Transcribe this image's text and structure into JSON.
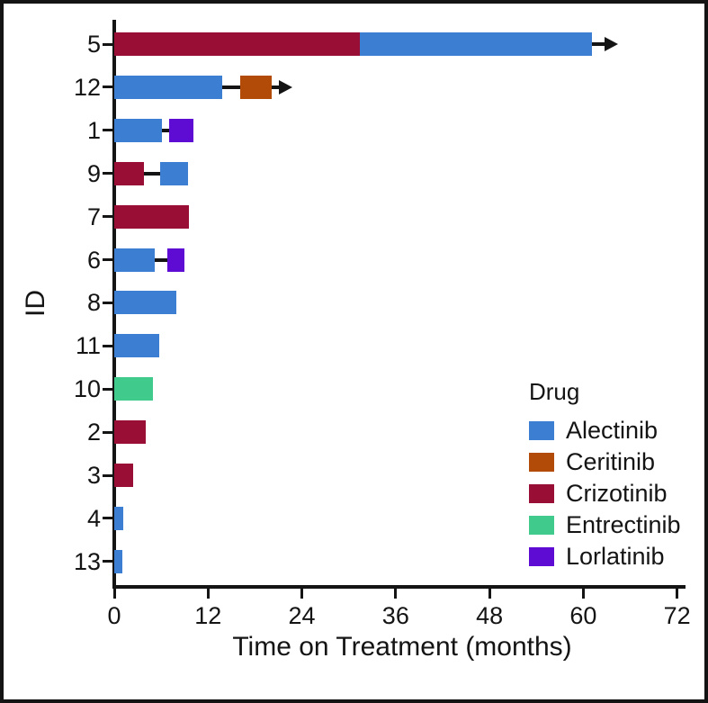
{
  "chart_data": {
    "type": "bar",
    "variant": "swimmer-plot",
    "orientation": "horizontal",
    "title": "",
    "xlabel": "Time on Treatment (months)",
    "ylabel": "ID",
    "xlim": [
      0,
      72
    ],
    "xticks": [
      0,
      12,
      24,
      36,
      48,
      60,
      72
    ],
    "grid": false,
    "background": "#ffffff",
    "axis_color": "#141414",
    "legend": {
      "title": "Drug",
      "position": "inside-right",
      "entries": [
        {
          "label": "Alectinib",
          "color": "#3b7ed2"
        },
        {
          "label": "Ceritinib",
          "color": "#b24a08"
        },
        {
          "label": "Crizotinib",
          "color": "#990e34"
        },
        {
          "label": "Entrectinib",
          "color": "#40cb8c"
        },
        {
          "label": "Lorlatinib",
          "color": "#5e0cd4"
        }
      ]
    },
    "rows": [
      {
        "id": "5",
        "segments": [
          {
            "drug": "Crizotinib",
            "start": 0,
            "end": 31.4
          },
          {
            "drug": "Alectinib",
            "start": 31.4,
            "end": 61.1
          }
        ],
        "ongoing": true,
        "arrow_tip": 64.4
      },
      {
        "id": "12",
        "segments": [
          {
            "drug": "Alectinib",
            "start": 0,
            "end": 13.8
          },
          {
            "drug": "Ceritinib",
            "start": 16.1,
            "end": 20.1
          }
        ],
        "ongoing": true,
        "arrow_tip": 22.8
      },
      {
        "id": "1",
        "segments": [
          {
            "drug": "Alectinib",
            "start": 0,
            "end": 6.1
          },
          {
            "drug": "Lorlatinib",
            "start": 7.0,
            "end": 10.1
          }
        ],
        "ongoing": false
      },
      {
        "id": "9",
        "segments": [
          {
            "drug": "Crizotinib",
            "start": 0,
            "end": 3.8
          },
          {
            "drug": "Alectinib",
            "start": 5.9,
            "end": 9.4
          }
        ],
        "ongoing": false
      },
      {
        "id": "7",
        "segments": [
          {
            "drug": "Crizotinib",
            "start": 0,
            "end": 9.5
          }
        ],
        "ongoing": false
      },
      {
        "id": "6",
        "segments": [
          {
            "drug": "Alectinib",
            "start": 0,
            "end": 5.2
          },
          {
            "drug": "Lorlatinib",
            "start": 6.8,
            "end": 9.0
          }
        ],
        "ongoing": false
      },
      {
        "id": "8",
        "segments": [
          {
            "drug": "Alectinib",
            "start": 0,
            "end": 7.9
          }
        ],
        "ongoing": false
      },
      {
        "id": "11",
        "segments": [
          {
            "drug": "Alectinib",
            "start": 0,
            "end": 5.7
          }
        ],
        "ongoing": false
      },
      {
        "id": "10",
        "segments": [
          {
            "drug": "Entrectinib",
            "start": 0,
            "end": 4.9
          }
        ],
        "ongoing": false
      },
      {
        "id": "2",
        "segments": [
          {
            "drug": "Crizotinib",
            "start": 0,
            "end": 4.0
          }
        ],
        "ongoing": false
      },
      {
        "id": "3",
        "segments": [
          {
            "drug": "Crizotinib",
            "start": 0,
            "end": 2.4
          }
        ],
        "ongoing": false
      },
      {
        "id": "4",
        "segments": [
          {
            "drug": "Alectinib",
            "start": 0,
            "end": 1.1
          }
        ],
        "ongoing": false
      },
      {
        "id": "13",
        "segments": [
          {
            "drug": "Alectinib",
            "start": 0,
            "end": 1.0
          }
        ],
        "ongoing": false
      }
    ]
  }
}
